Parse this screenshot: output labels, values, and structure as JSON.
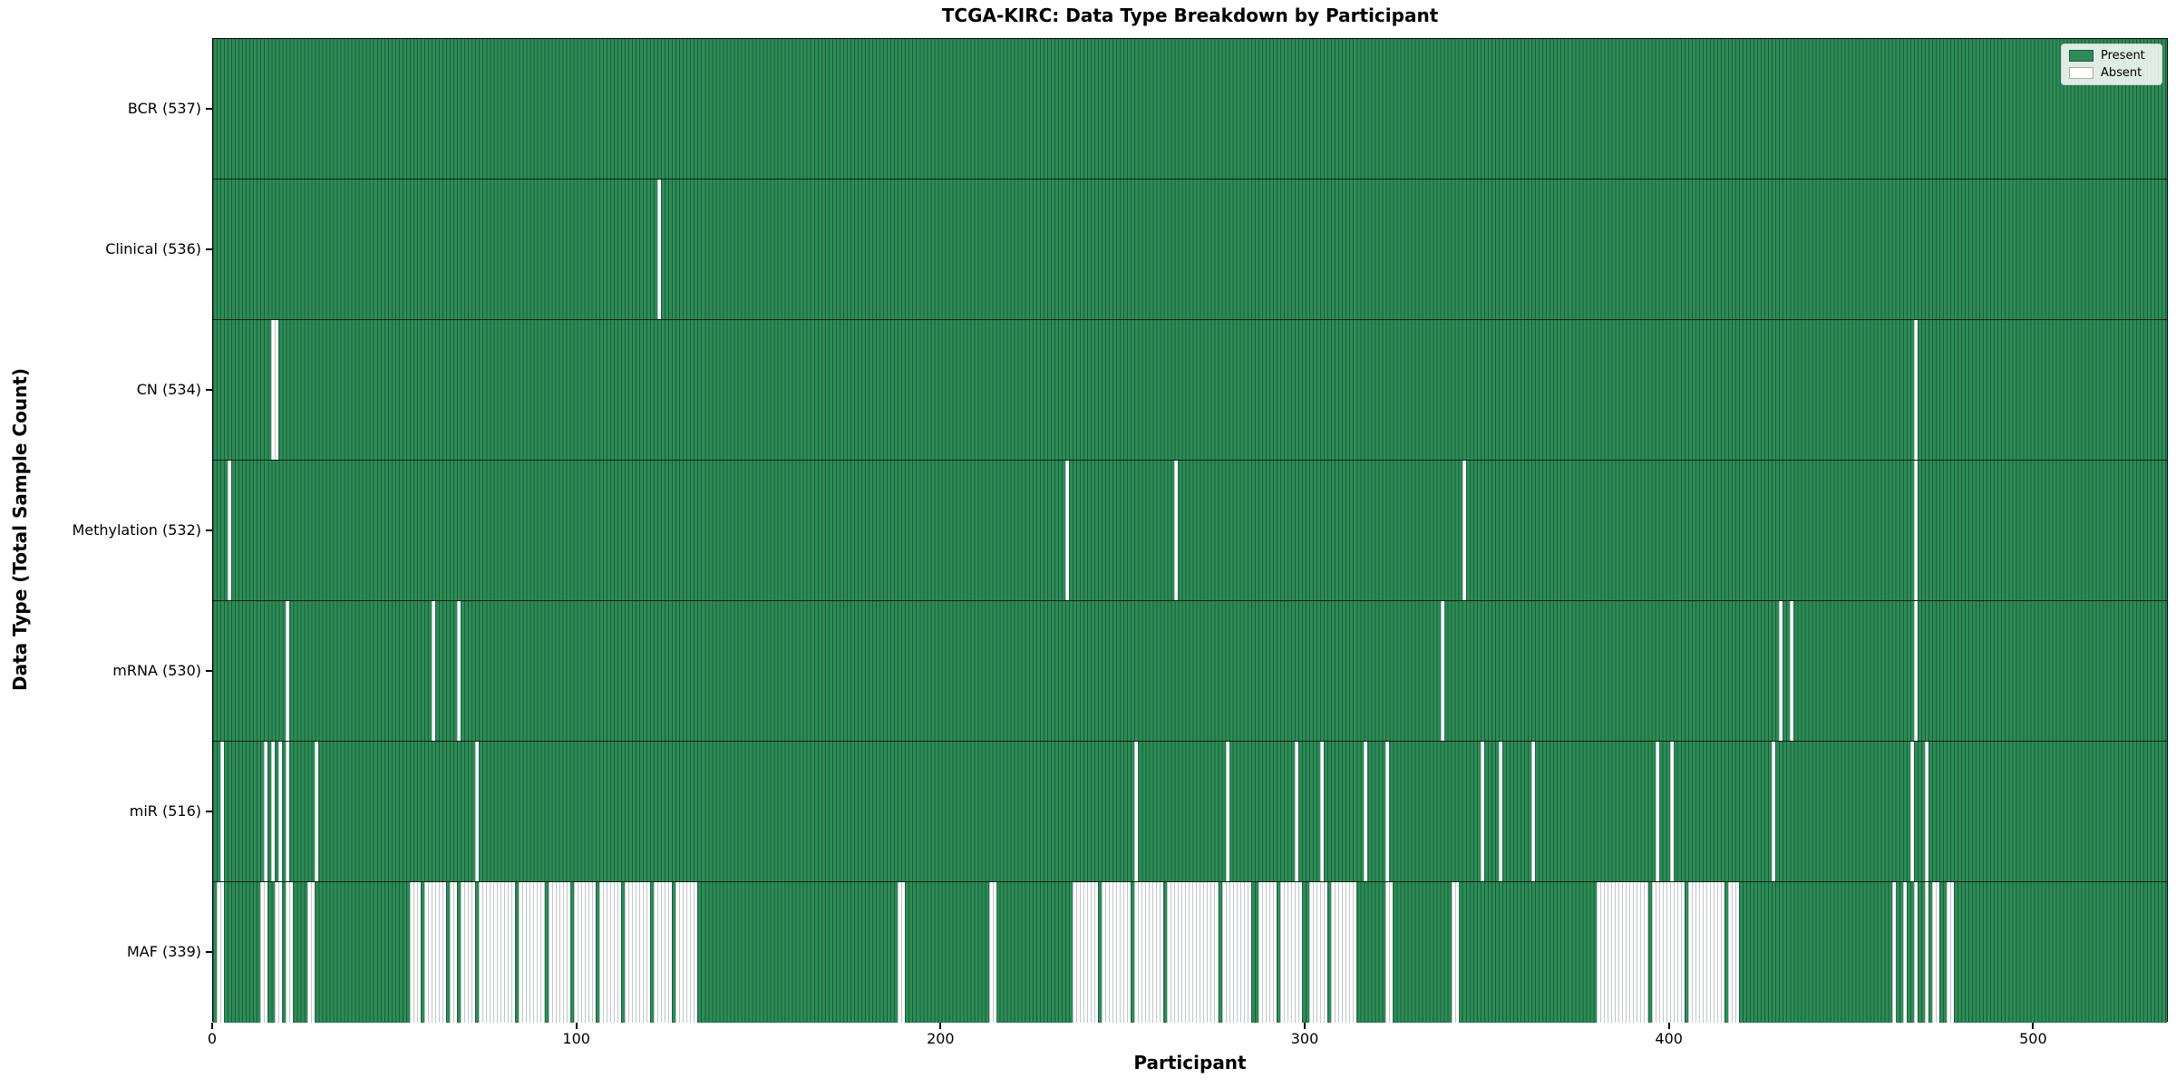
{
  "title": "TCGA-KIRC: Data Type Breakdown by Participant",
  "axes": {
    "xlabel": "Participant",
    "ylabel": "Data Type (Total Sample Count)",
    "x_ticks": [
      0,
      100,
      200,
      300,
      400,
      500
    ]
  },
  "legend": {
    "present_label": "Present",
    "absent_label": "Absent"
  },
  "colors": {
    "present": "#2e8b57",
    "present_edge": "#17603a",
    "absent": "#ffffff",
    "absent_edge": "#c3c7ca",
    "frame": "#000000"
  },
  "chart_data": {
    "type": "heatmap",
    "title": "TCGA-KIRC: Data Type Breakdown by Participant",
    "xlabel": "Participant",
    "ylabel": "Data Type (Total Sample Count)",
    "x_range": [
      0,
      537
    ],
    "n_participants": 537,
    "legend_entries": [
      "Present",
      "Absent"
    ],
    "legend_position": "upper right",
    "encoding": "each row is one data type; green cell = sample present for that participant, white cell = absent; absent cells = absent_ranges (inclusive participant index ranges) minus present_exceptions",
    "rows": [
      {
        "label": "BCR (537)",
        "data_type": "BCR",
        "total_present": 537,
        "absent_ranges": [],
        "present_exceptions": []
      },
      {
        "label": "Clinical (536)",
        "data_type": "Clinical",
        "total_present": 536,
        "absent_ranges": [
          [
            122,
            122
          ]
        ],
        "present_exceptions": []
      },
      {
        "label": "CN (534)",
        "data_type": "CN",
        "total_present": 534,
        "absent_ranges": [
          [
            16,
            17
          ],
          [
            467,
            467
          ]
        ],
        "present_exceptions": []
      },
      {
        "label": "Methylation (532)",
        "data_type": "Methylation",
        "total_present": 532,
        "absent_ranges": [
          [
            4,
            4
          ],
          [
            234,
            234
          ],
          [
            264,
            264
          ],
          [
            343,
            343
          ],
          [
            467,
            467
          ]
        ],
        "present_exceptions": []
      },
      {
        "label": "mRNA (530)",
        "data_type": "mRNA",
        "total_present": 530,
        "absent_ranges": [
          [
            20,
            20
          ],
          [
            60,
            60
          ],
          [
            67,
            67
          ],
          [
            337,
            337
          ],
          [
            430,
            430
          ],
          [
            433,
            433
          ],
          [
            467,
            467
          ]
        ],
        "present_exceptions": []
      },
      {
        "label": "miR (516)",
        "data_type": "miR",
        "total_present": 516,
        "absent_ranges": [
          [
            2,
            2
          ],
          [
            14,
            14
          ],
          [
            16,
            16
          ],
          [
            18,
            18
          ],
          [
            20,
            20
          ],
          [
            28,
            28
          ],
          [
            72,
            72
          ],
          [
            253,
            253
          ],
          [
            278,
            278
          ],
          [
            297,
            297
          ],
          [
            304,
            304
          ],
          [
            316,
            316
          ],
          [
            322,
            322
          ],
          [
            348,
            348
          ],
          [
            353,
            353
          ],
          [
            362,
            362
          ],
          [
            396,
            396
          ],
          [
            400,
            400
          ],
          [
            428,
            428
          ],
          [
            466,
            466
          ],
          [
            470,
            470
          ]
        ],
        "present_exceptions": []
      },
      {
        "label": "MAF (339)",
        "data_type": "MAF",
        "total_present": 339,
        "absent_ranges": [
          [
            1,
            2
          ],
          [
            13,
            14
          ],
          [
            17,
            18
          ],
          [
            20,
            21
          ],
          [
            26,
            27
          ],
          [
            54,
            77
          ],
          [
            78,
            132
          ],
          [
            188,
            189
          ],
          [
            213,
            214
          ],
          [
            236,
            284
          ],
          [
            287,
            313
          ],
          [
            322,
            323
          ],
          [
            340,
            341
          ],
          [
            380,
            418
          ],
          [
            461,
            461
          ],
          [
            464,
            464
          ],
          [
            467,
            467
          ],
          [
            470,
            470
          ],
          [
            472,
            473
          ],
          [
            476,
            477
          ]
        ],
        "present_exceptions": [
          57,
          64,
          67,
          72,
          83,
          91,
          98,
          105,
          112,
          120,
          126,
          243,
          252,
          261,
          276,
          292,
          299,
          300,
          306,
          394,
          404,
          415
        ]
      }
    ]
  }
}
